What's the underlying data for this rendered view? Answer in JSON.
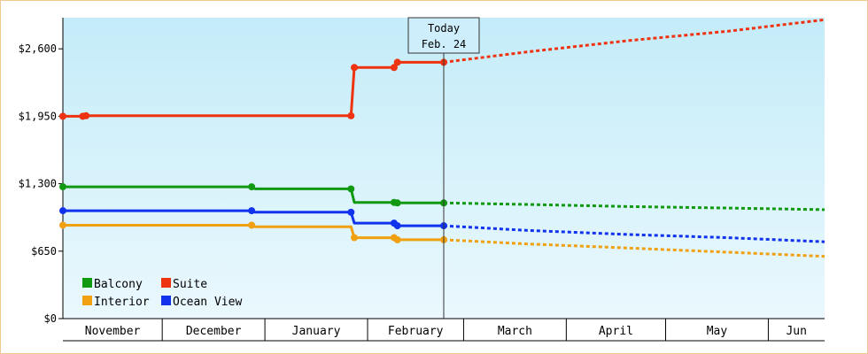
{
  "chart_data": {
    "type": "line",
    "title": "",
    "xlabel": "",
    "ylabel": "",
    "ylim": [
      0,
      2900
    ],
    "x_range": [
      "2023-11-01",
      "2024-06-18"
    ],
    "y_ticks": [
      {
        "value": 0,
        "label": "$0"
      },
      {
        "value": 650,
        "label": "$650"
      },
      {
        "value": 1300,
        "label": "$1,300"
      },
      {
        "value": 1950,
        "label": "$1,950"
      },
      {
        "value": 2600,
        "label": "$2,600"
      }
    ],
    "months": [
      {
        "label": "November",
        "start": "2023-11-01",
        "end": "2023-12-01"
      },
      {
        "label": "December",
        "start": "2023-12-01",
        "end": "2024-01-01"
      },
      {
        "label": "January",
        "start": "2024-01-01",
        "end": "2024-02-01"
      },
      {
        "label": "February",
        "start": "2024-02-01",
        "end": "2024-03-01"
      },
      {
        "label": "March",
        "start": "2024-03-01",
        "end": "2024-04-01"
      },
      {
        "label": "April",
        "start": "2024-04-01",
        "end": "2024-05-01"
      },
      {
        "label": "May",
        "start": "2024-05-01",
        "end": "2024-06-01"
      },
      {
        "label": "Jun",
        "start": "2024-06-01",
        "end": "2024-06-18"
      }
    ],
    "today": {
      "line1": "Today",
      "line2": "Feb. 24",
      "date": "2024-02-24"
    },
    "grid": false,
    "legend_position": "bottom-left",
    "series": [
      {
        "name": "Balcony",
        "color": "#119911",
        "points": [
          [
            "2023-11-01",
            1270
          ],
          [
            "2023-12-28",
            1270
          ],
          [
            "2023-12-29",
            1250
          ],
          [
            "2024-01-27",
            1250
          ],
          [
            "2024-01-28",
            1120
          ],
          [
            "2024-02-09",
            1120
          ],
          [
            "2024-02-10",
            1115
          ],
          [
            "2024-02-24",
            1115
          ]
        ],
        "markers": [
          "2023-11-01",
          "2023-12-28",
          "2024-01-27",
          "2024-02-09",
          "2024-02-10",
          "2024-02-24"
        ],
        "forecast": [
          [
            "2024-02-24",
            1115
          ],
          [
            "2024-03-20",
            1100
          ],
          [
            "2024-04-20",
            1080
          ],
          [
            "2024-05-20",
            1065
          ],
          [
            "2024-06-18",
            1050
          ]
        ]
      },
      {
        "name": "Suite",
        "color": "#ee3311",
        "points": [
          [
            "2023-11-01",
            1950
          ],
          [
            "2023-11-07",
            1950
          ],
          [
            "2023-11-08",
            1955
          ],
          [
            "2024-01-27",
            1955
          ],
          [
            "2024-01-28",
            2420
          ],
          [
            "2024-02-09",
            2420
          ],
          [
            "2024-02-10",
            2470
          ],
          [
            "2024-02-24",
            2470
          ]
        ],
        "markers": [
          "2023-11-01",
          "2023-11-07",
          "2023-11-08",
          "2024-01-27",
          "2024-01-28",
          "2024-02-09",
          "2024-02-10",
          "2024-02-24"
        ],
        "forecast": [
          [
            "2024-02-24",
            2470
          ],
          [
            "2024-03-20",
            2570
          ],
          [
            "2024-04-20",
            2680
          ],
          [
            "2024-05-20",
            2770
          ],
          [
            "2024-06-18",
            2880
          ]
        ]
      },
      {
        "name": "Interior",
        "color": "#f0a010",
        "points": [
          [
            "2023-11-01",
            900
          ],
          [
            "2023-12-28",
            900
          ],
          [
            "2023-12-29",
            885
          ],
          [
            "2024-01-27",
            885
          ],
          [
            "2024-01-28",
            780
          ],
          [
            "2024-02-09",
            780
          ],
          [
            "2024-02-10",
            760
          ],
          [
            "2024-02-24",
            760
          ]
        ],
        "markers": [
          "2023-11-01",
          "2023-12-28",
          "2024-01-28",
          "2024-02-09",
          "2024-02-10",
          "2024-02-24"
        ],
        "forecast": [
          [
            "2024-02-24",
            760
          ],
          [
            "2024-03-20",
            720
          ],
          [
            "2024-04-20",
            680
          ],
          [
            "2024-05-20",
            640
          ],
          [
            "2024-06-18",
            600
          ]
        ]
      },
      {
        "name": "Ocean View",
        "color": "#1133ee",
        "points": [
          [
            "2023-11-01",
            1040
          ],
          [
            "2023-12-28",
            1040
          ],
          [
            "2023-12-29",
            1025
          ],
          [
            "2024-01-27",
            1025
          ],
          [
            "2024-01-28",
            920
          ],
          [
            "2024-02-09",
            920
          ],
          [
            "2024-02-10",
            895
          ],
          [
            "2024-02-24",
            895
          ]
        ],
        "markers": [
          "2023-11-01",
          "2023-12-28",
          "2024-01-27",
          "2024-02-09",
          "2024-02-10",
          "2024-02-24"
        ],
        "forecast": [
          [
            "2024-02-24",
            895
          ],
          [
            "2024-03-20",
            850
          ],
          [
            "2024-04-20",
            810
          ],
          [
            "2024-05-20",
            780
          ],
          [
            "2024-06-18",
            740
          ]
        ]
      }
    ],
    "legend_order": [
      "Balcony",
      "Suite",
      "Interior",
      "Ocean View"
    ]
  }
}
